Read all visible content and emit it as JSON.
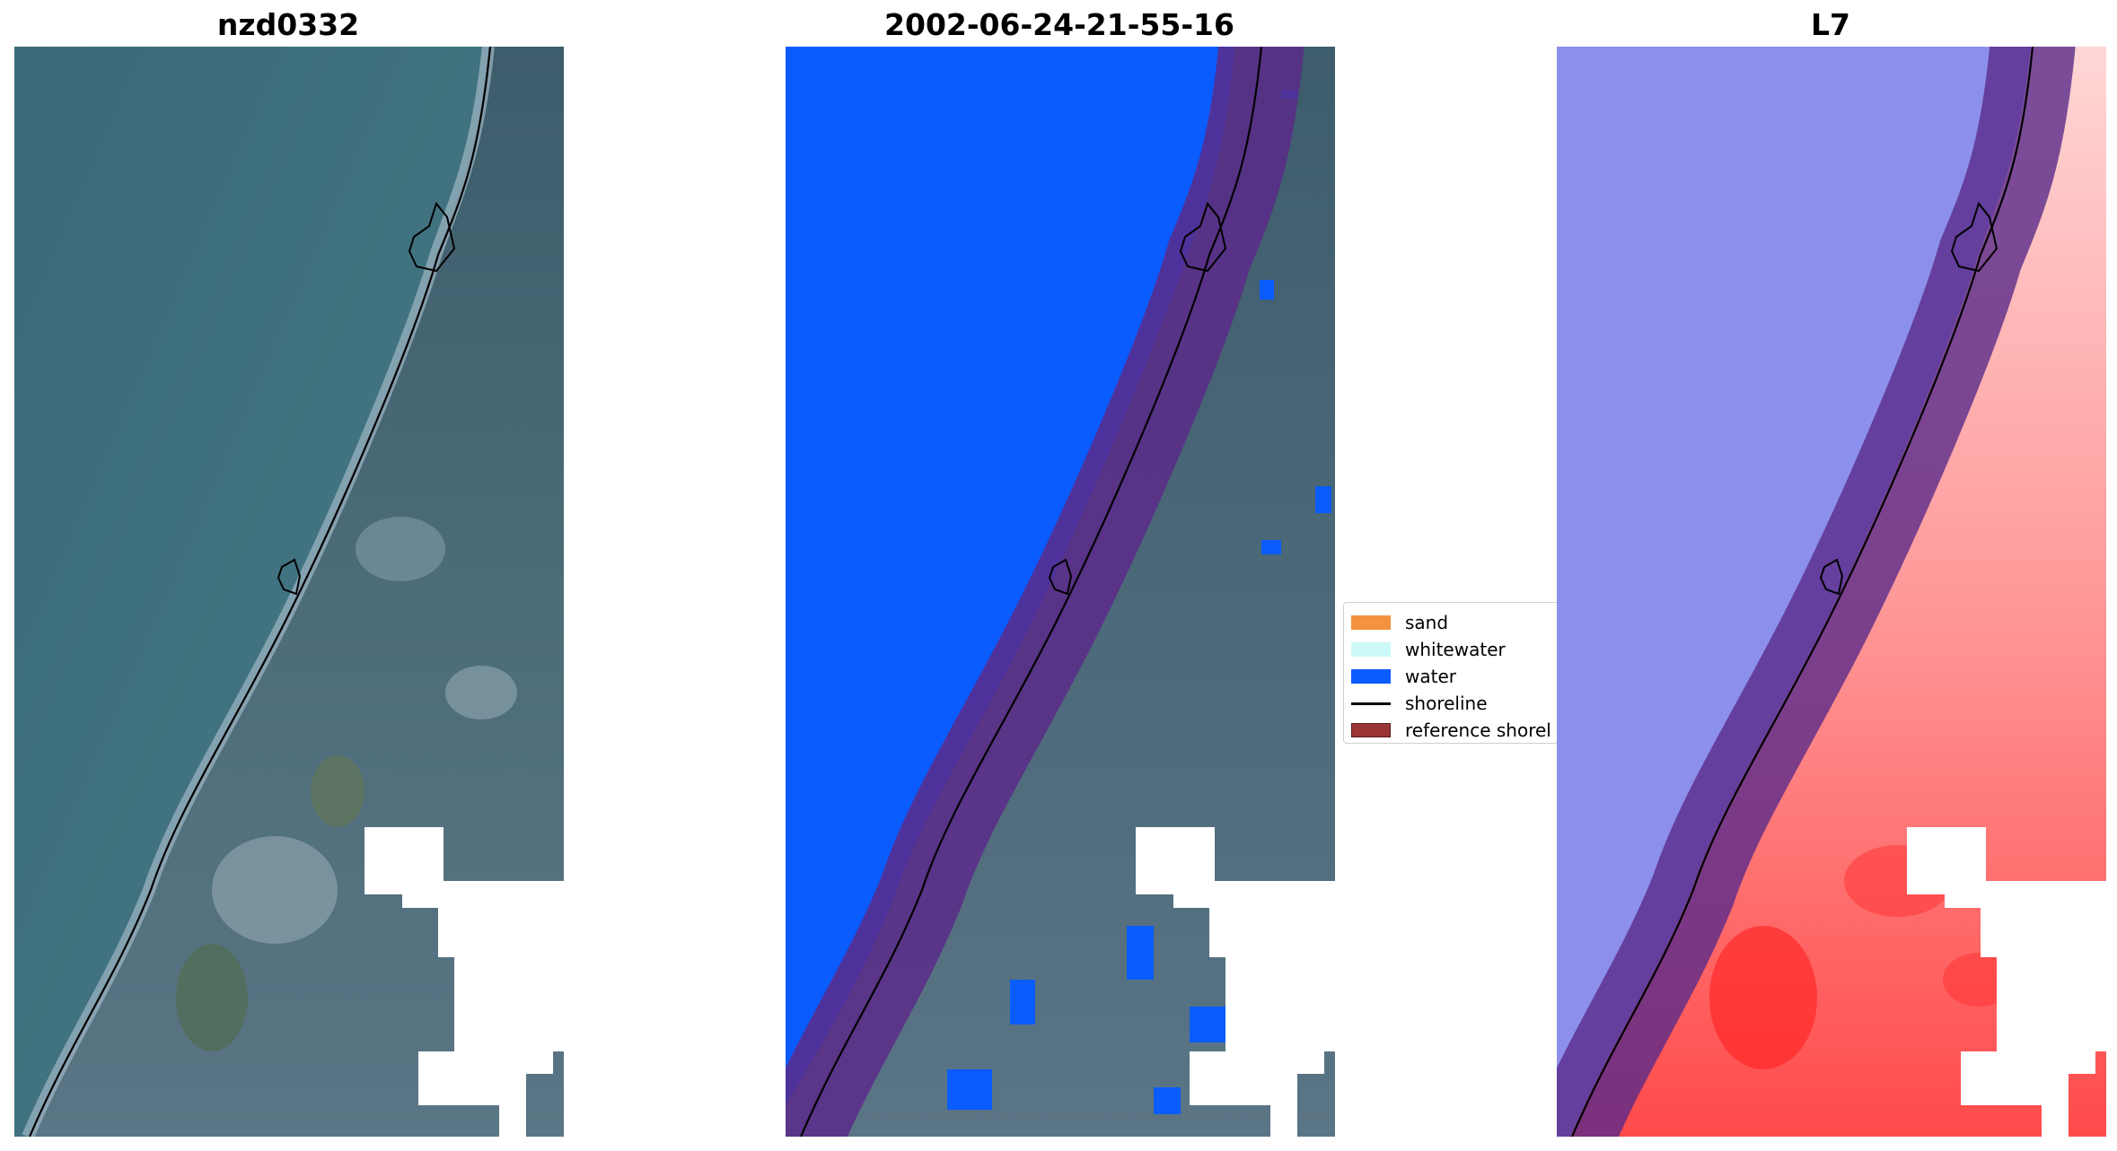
{
  "panels": [
    {
      "title": "nzd0332",
      "view": "rgb-image"
    },
    {
      "title": "2002-06-24-21-55-16",
      "view": "classified-image"
    },
    {
      "title": "L7",
      "view": "water-index-image"
    }
  ],
  "legend": {
    "items": [
      {
        "label": "sand",
        "kind": "patch",
        "color": "#f5923e"
      },
      {
        "label": "whitewater",
        "kind": "patch",
        "color": "#ccfaf8"
      },
      {
        "label": "water",
        "kind": "patch",
        "color": "#0a5cff"
      },
      {
        "label": "shoreline",
        "kind": "line",
        "color": "#000000"
      },
      {
        "label": "reference shorel",
        "kind": "patch",
        "color": "#9b3535"
      }
    ]
  },
  "colors": {
    "sea": "#3f6f7d",
    "land": "#4a6a7a",
    "water_class": "#0a5cff",
    "buffer": "#5a2a8a",
    "index_low": "#6f72e6",
    "index_high": "#ff3a3a"
  }
}
